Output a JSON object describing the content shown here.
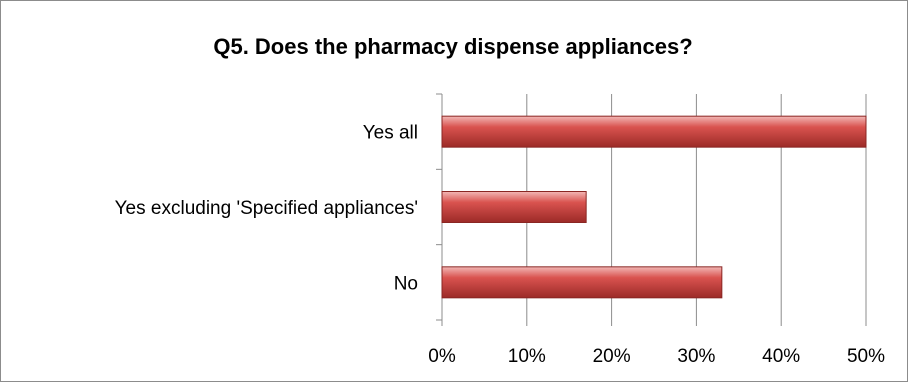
{
  "chart_data": {
    "type": "bar",
    "orientation": "horizontal",
    "title": "Q5. Does the pharmacy dispense appliances?",
    "categories": [
      "Yes all",
      "Yes excluding 'Specified appliances'",
      "No"
    ],
    "values": [
      50,
      17,
      33
    ],
    "unit": "%",
    "xlim": [
      0,
      50
    ],
    "x_ticks": [
      "0%",
      "10%",
      "20%",
      "30%",
      "40%",
      "50%"
    ],
    "grid": "vertical",
    "legend": "none",
    "bar_color": "#c0504d"
  }
}
